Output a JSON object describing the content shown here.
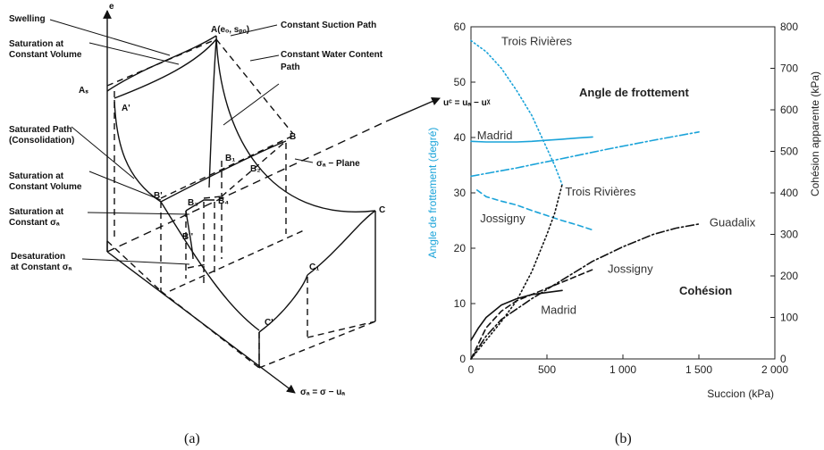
{
  "panel_a": {
    "caption": "(a)",
    "labels": {
      "e_axis": "e",
      "point_A": "A(eₒ, sₚₒ)",
      "swelling": "Swelling",
      "sat_const_vol_1": "Saturation at",
      "sat_const_vol_1b": "Constant Volume",
      "As": "Aₛ",
      "A_prime": "A'",
      "sat_path": "Saturated Path",
      "sat_path_b": "(Consolidation)",
      "const_suction": "Constant Suction Path",
      "const_water": "Constant Water Content",
      "const_water_b": "Path",
      "uc_axis": "uᶜ = uₐ − uᵡ",
      "B": "B",
      "B1": "B₁",
      "B2": "B₂",
      "sigma_plane": "σₐ − Plane",
      "sat_const_vol_2": "Saturation at",
      "sat_const_vol_2b": "Constant Volume",
      "B_prime": "B'",
      "B3": "B₃",
      "B4": "B₄",
      "sat_const_sigma": "Saturation at",
      "sat_const_sigma_b": "Constant σₐ",
      "B_second": "B''",
      "desat": "Desaturation",
      "desat_b": "at Constant σₐ",
      "C": "C",
      "C1": "C₁",
      "C_prime": "C'",
      "sigma_axis": "σₐ = σ − uₐ"
    }
  },
  "panel_b": {
    "caption": "(b)",
    "chart_data": {
      "type": "line",
      "xlabel": "Succion (kPa)",
      "ylabel_left": "Angle de frottement (degré)",
      "ylabel_right": "Cohésion apparente (kPa)",
      "xlim": [
        0,
        2000
      ],
      "ylim_left": [
        0,
        60
      ],
      "ylim_right": [
        0,
        800
      ],
      "x_ticks": [
        0,
        500,
        1000,
        1500,
        2000
      ],
      "x_tick_labels": [
        "0",
        "500",
        "1 000",
        "1 500",
        "2 000"
      ],
      "y_left_ticks": [
        0,
        10,
        20,
        30,
        40,
        50,
        60
      ],
      "y_right_ticks": [
        0,
        100,
        200,
        300,
        400,
        500,
        600,
        700,
        800
      ],
      "annotations": {
        "friction_group": "Angle de frottement",
        "cohesion_group": "Cohésion"
      },
      "colors": {
        "friction": "#1aa3d9",
        "cohesion": "#111111"
      },
      "series": [
        {
          "name": "Madrid",
          "group": "friction",
          "style": "solid",
          "axis": "left",
          "x": [
            0,
            100,
            200,
            300,
            400,
            500,
            600,
            700,
            800
          ],
          "y": [
            39.3,
            39.2,
            39.2,
            39.2,
            39.3,
            39.5,
            39.7,
            39.9,
            40.1
          ]
        },
        {
          "name": "",
          "group": "friction",
          "style": "dashdot",
          "axis": "left",
          "x": [
            0,
            300,
            600,
            900,
            1200,
            1500
          ],
          "y": [
            33,
            34.5,
            36.2,
            37.9,
            39.5,
            41
          ]
        },
        {
          "name": "Trois Rivières",
          "group": "friction",
          "style": "dotted",
          "axis": "left",
          "x": [
            0,
            100,
            200,
            300,
            400,
            500,
            550,
            600
          ],
          "y": [
            57.5,
            55.5,
            52.5,
            48.5,
            44,
            38,
            35,
            31.5
          ]
        },
        {
          "name": "Jossigny",
          "group": "friction",
          "style": "dashed",
          "axis": "left",
          "x": [
            40,
            100,
            200,
            300,
            400,
            500,
            600,
            700,
            800
          ],
          "y": [
            30.5,
            29.3,
            28.5,
            27.8,
            26.8,
            25.9,
            25,
            24.2,
            23.3
          ]
        },
        {
          "name": "Guadalix",
          "group": "cohesion",
          "style": "dashdot",
          "axis": "right",
          "x": [
            0,
            100,
            200,
            400,
            600,
            800,
            1000,
            1200,
            1350,
            1500
          ],
          "y": [
            0,
            55,
            95,
            145,
            190,
            235,
            270,
            300,
            315,
            325
          ]
        },
        {
          "name": "Jossigny",
          "group": "cohesion",
          "style": "dashed",
          "axis": "right",
          "x": [
            0,
            100,
            200,
            300,
            400,
            500,
            600,
            700,
            800
          ],
          "y": [
            0,
            75,
            115,
            140,
            155,
            170,
            185,
            200,
            215
          ]
        },
        {
          "name": "Madrid",
          "group": "cohesion",
          "style": "solid",
          "axis": "right",
          "x": [
            0,
            50,
            100,
            200,
            300,
            400,
            500,
            600
          ],
          "y": [
            45,
            75,
            100,
            130,
            145,
            155,
            160,
            165
          ]
        },
        {
          "name": "Trois Rivières",
          "group": "cohesion",
          "style": "dotted",
          "axis": "right",
          "x": [
            0,
            100,
            200,
            300,
            400,
            500,
            550,
            600
          ],
          "y": [
            0,
            45,
            90,
            140,
            210,
            300,
            350,
            420
          ]
        }
      ],
      "labels": [
        {
          "text": "Trois Rivières",
          "x": 200,
          "y": 57.3
        },
        {
          "text": "Madrid",
          "x": 40,
          "y": 40.3
        },
        {
          "text": "Trois Rivières",
          "x": 620,
          "y": 30.2
        },
        {
          "text": "Jossigny",
          "x": 60,
          "y": 25.3
        },
        {
          "text": "Guadalix",
          "x": 1570,
          "y": 24.6
        },
        {
          "text": "Jossigny",
          "x": 900,
          "y": 16.2
        },
        {
          "text": "Madrid",
          "x": 460,
          "y": 8.8
        }
      ]
    }
  }
}
